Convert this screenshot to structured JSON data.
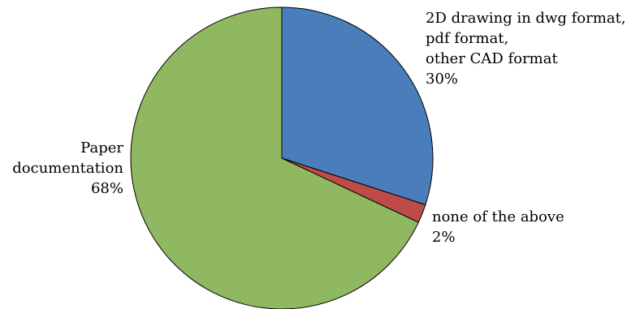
{
  "chart_data": {
    "type": "pie",
    "slices": [
      {
        "lines": [
          "2D drawing in dwg format,",
          "pdf format,",
          "other CAD format"
        ],
        "value_label": "30%",
        "value": 30,
        "color": "#4A7EBB"
      },
      {
        "lines": [
          "none of the above"
        ],
        "value_label": "2%",
        "value": 2,
        "color": "#BE4B48"
      },
      {
        "lines": [
          "Paper",
          "documentation"
        ],
        "value_label": "68%",
        "value": 68,
        "color": "#8FB860"
      }
    ],
    "start": "12 o'clock",
    "direction": "clockwise",
    "legend": "none"
  }
}
